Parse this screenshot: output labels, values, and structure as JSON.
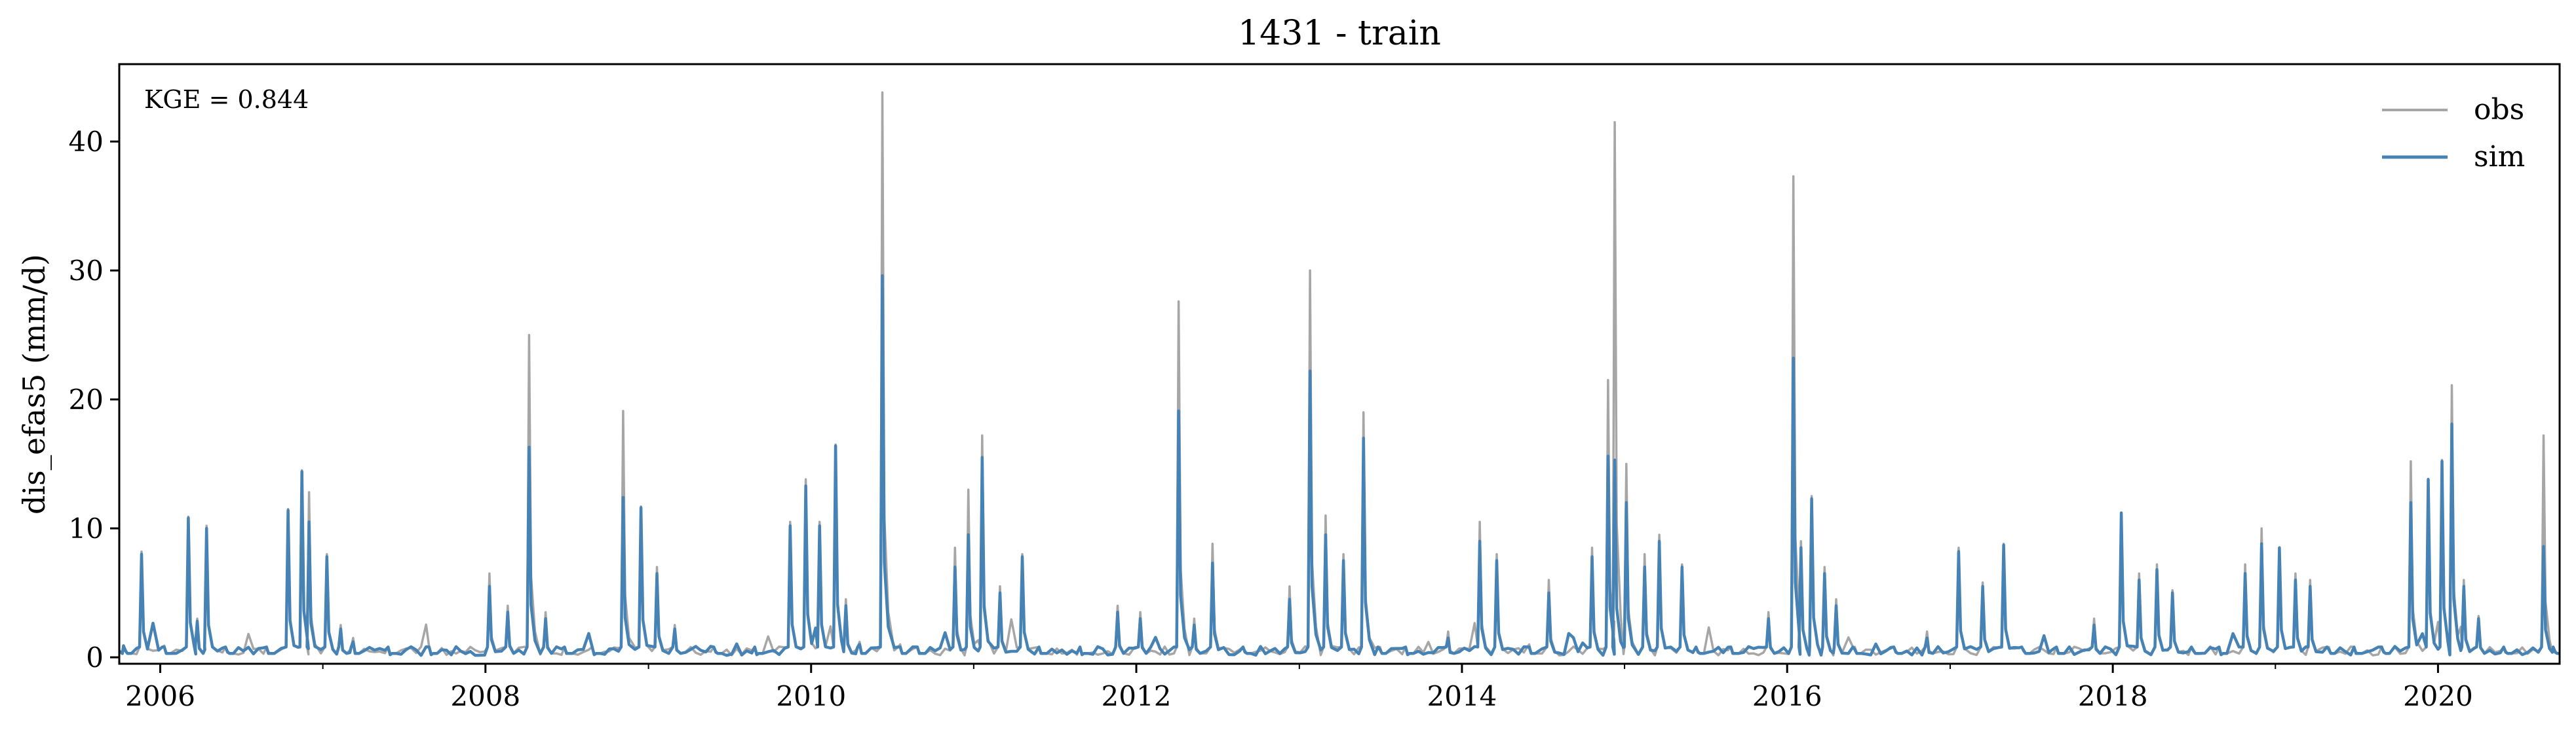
{
  "chart_data": {
    "type": "line",
    "title": "1431 - train",
    "xlabel": "",
    "ylabel": "dis_efas5 (mm/d)",
    "xlim": [
      "2005-10-01",
      "2020-09-30"
    ],
    "ylim": [
      -0.5,
      46
    ],
    "yticks": [
      0,
      10,
      20,
      30,
      40
    ],
    "xticks": [
      "2006",
      "2008",
      "2010",
      "2012",
      "2014",
      "2016",
      "2018",
      "2020"
    ],
    "grid": false,
    "legend_position": "top-right",
    "annotation": "KGE = 0.844",
    "colors": {
      "obs": "#a6a6a6",
      "sim": "#4682b4"
    },
    "series": [
      {
        "name": "obs",
        "x": [
          "2005-10-15",
          "2005-11-20",
          "2006-01-10",
          "2006-03-05",
          "2006-03-25",
          "2006-04-15",
          "2006-06-01",
          "2006-09-01",
          "2006-10-15",
          "2006-11-15",
          "2006-12-01",
          "2007-01-10",
          "2007-02-10",
          "2007-03-10",
          "2007-06-01",
          "2007-09-01",
          "2008-01-10",
          "2008-02-20",
          "2008-04-08",
          "2008-05-15",
          "2008-07-01",
          "2008-09-01",
          "2008-11-05",
          "2008-12-15",
          "2009-01-20",
          "2009-03-01",
          "2009-06-01",
          "2009-09-01",
          "2009-11-15",
          "2009-12-20",
          "2010-01-20",
          "2010-02-25",
          "2010-03-20",
          "2010-04-20",
          "2010-06-10",
          "2010-07-20",
          "2010-09-01",
          "2010-11-20",
          "2010-12-20",
          "2011-01-20",
          "2011-03-01",
          "2011-04-20",
          "2011-06-01",
          "2011-09-01",
          "2011-11-20",
          "2012-01-10",
          "2012-04-05",
          "2012-05-10",
          "2012-06-20",
          "2012-09-01",
          "2012-12-10",
          "2013-01-25",
          "2013-03-01",
          "2013-04-10",
          "2013-05-25",
          "2013-07-01",
          "2013-09-01",
          "2013-12-01",
          "2014-02-10",
          "2014-03-20",
          "2014-06-01",
          "2014-07-15",
          "2014-10-20",
          "2014-11-25",
          "2014-12-10",
          "2015-01-05",
          "2015-02-15",
          "2015-03-20",
          "2015-05-10",
          "2015-06-15",
          "2015-09-01",
          "2015-11-20",
          "2016-01-15",
          "2016-02-01",
          "2016-02-25",
          "2016-03-25",
          "2016-04-20",
          "2016-06-01",
          "2016-09-01",
          "2016-11-10",
          "2017-01-20",
          "2017-03-15",
          "2017-05-01",
          "2017-06-15",
          "2017-09-01",
          "2017-11-20",
          "2018-01-20",
          "2018-03-01",
          "2018-04-10",
          "2018-05-15",
          "2018-07-01",
          "2018-09-01",
          "2018-10-25",
          "2018-12-01",
          "2019-01-10",
          "2019-02-15",
          "2019-03-20",
          "2019-05-01",
          "2019-07-01",
          "2019-09-01",
          "2019-11-01",
          "2019-12-10",
          "2020-01-10",
          "2020-02-01",
          "2020-02-28",
          "2020-04-01",
          "2020-06-01",
          "2020-08-25",
          "2020-09-20"
        ],
        "y": [
          0.6,
          8.2,
          0.9,
          10.9,
          3,
          10.2,
          0.5,
          0.4,
          11.5,
          14.5,
          12.8,
          8,
          2.5,
          1.5,
          0.3,
          0.3,
          6.5,
          4,
          25,
          3.5,
          0.4,
          0.3,
          19.1,
          11.7,
          7,
          2.5,
          0.5,
          0.3,
          10.5,
          13.8,
          10.5,
          16.5,
          4.5,
          1.2,
          43.8,
          1,
          0.4,
          8.5,
          13,
          17.2,
          5.5,
          8,
          0.4,
          0.3,
          4,
          3.5,
          27.6,
          3,
          8.8,
          0.5,
          5.5,
          30,
          11,
          8,
          19,
          0.8,
          0.3,
          2,
          10.5,
          8,
          1,
          6,
          8.5,
          21.5,
          41.5,
          15,
          8,
          9.5,
          7.2,
          0.5,
          0.4,
          3.5,
          37.3,
          9,
          12.5,
          7,
          4.5,
          0.8,
          0.5,
          2,
          8.5,
          5.8,
          8.8,
          0.6,
          0.4,
          3,
          11.2,
          6.5,
          7.2,
          5.2,
          0.6,
          0.3,
          7.2,
          10,
          8.5,
          6.5,
          6,
          0.8,
          0.4,
          0.5,
          15.2,
          13.8,
          15.3,
          21.1,
          6,
          3.2,
          0.5,
          17.2,
          0.5
        ]
      },
      {
        "name": "sim",
        "x": [
          "2005-10-15",
          "2005-11-20",
          "2006-01-10",
          "2006-03-05",
          "2006-03-25",
          "2006-04-15",
          "2006-06-01",
          "2006-09-01",
          "2006-10-15",
          "2006-11-15",
          "2006-12-01",
          "2007-01-10",
          "2007-02-10",
          "2007-03-10",
          "2007-06-01",
          "2007-09-01",
          "2008-01-10",
          "2008-02-20",
          "2008-04-08",
          "2008-05-15",
          "2008-07-01",
          "2008-09-01",
          "2008-11-05",
          "2008-12-15",
          "2009-01-20",
          "2009-03-01",
          "2009-06-01",
          "2009-09-01",
          "2009-11-15",
          "2009-12-20",
          "2010-01-20",
          "2010-02-25",
          "2010-03-20",
          "2010-04-20",
          "2010-06-10",
          "2010-07-20",
          "2010-09-01",
          "2010-11-20",
          "2010-12-20",
          "2011-01-20",
          "2011-03-01",
          "2011-04-20",
          "2011-06-01",
          "2011-09-01",
          "2011-11-20",
          "2012-01-10",
          "2012-04-05",
          "2012-05-10",
          "2012-06-20",
          "2012-09-01",
          "2012-12-10",
          "2013-01-25",
          "2013-03-01",
          "2013-04-10",
          "2013-05-25",
          "2013-07-01",
          "2013-09-01",
          "2013-12-01",
          "2014-02-10",
          "2014-03-20",
          "2014-06-01",
          "2014-07-15",
          "2014-10-20",
          "2014-11-25",
          "2014-12-10",
          "2015-01-05",
          "2015-02-15",
          "2015-03-20",
          "2015-05-10",
          "2015-06-15",
          "2015-09-01",
          "2015-11-20",
          "2016-01-15",
          "2016-02-01",
          "2016-02-25",
          "2016-03-25",
          "2016-04-20",
          "2016-06-01",
          "2016-09-01",
          "2016-11-10",
          "2017-01-20",
          "2017-03-15",
          "2017-05-01",
          "2017-06-15",
          "2017-09-01",
          "2017-11-20",
          "2018-01-20",
          "2018-03-01",
          "2018-04-10",
          "2018-05-15",
          "2018-07-01",
          "2018-09-01",
          "2018-10-25",
          "2018-12-01",
          "2019-01-10",
          "2019-02-15",
          "2019-03-20",
          "2019-05-01",
          "2019-07-01",
          "2019-09-01",
          "2019-11-01",
          "2019-12-10",
          "2020-01-10",
          "2020-02-01",
          "2020-02-28",
          "2020-04-01",
          "2020-06-01",
          "2020-08-25",
          "2020-09-20"
        ],
        "y": [
          0.5,
          8,
          0.8,
          10.8,
          2.8,
          10,
          0.4,
          0.3,
          11.4,
          14.4,
          10.5,
          7.8,
          2.2,
          1.2,
          0.2,
          0.2,
          5.5,
          3.5,
          16.3,
          3,
          0.3,
          0.2,
          12.4,
          11.6,
          6.5,
          2.2,
          0.4,
          0.2,
          10.2,
          13.3,
          10.2,
          16.4,
          4,
          1,
          29.6,
          0.8,
          0.3,
          7,
          9.5,
          15.5,
          5,
          7.8,
          0.3,
          0.2,
          3.5,
          3,
          19.1,
          2.5,
          7.3,
          0.4,
          4.5,
          22.2,
          9.5,
          7.5,
          17,
          0.6,
          0.2,
          1.5,
          9,
          7.5,
          0.8,
          5,
          7.8,
          15.6,
          15.3,
          12,
          7,
          9,
          7,
          0.4,
          0.3,
          3,
          23.2,
          8.5,
          12.3,
          6.5,
          4,
          0.6,
          0.4,
          1.5,
          8.2,
          5.5,
          8.7,
          0.5,
          0.3,
          2.5,
          11.2,
          6,
          6.8,
          5,
          0.5,
          0.2,
          6.5,
          8.8,
          8.5,
          6,
          5.5,
          0.6,
          0.3,
          0.4,
          12,
          13.8,
          15.2,
          18.1,
          5.5,
          3,
          0.4,
          8.6,
          0.4
        ]
      }
    ]
  }
}
